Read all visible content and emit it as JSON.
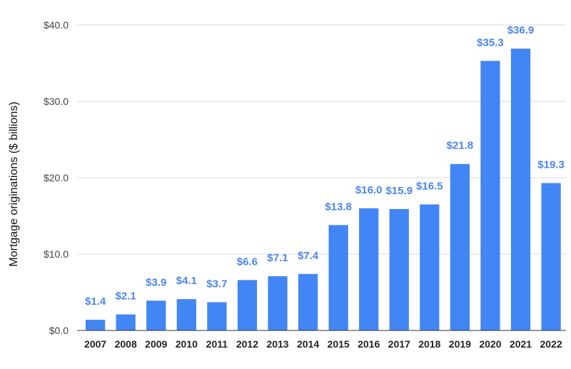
{
  "chart_data": {
    "type": "bar",
    "title": "",
    "xlabel": "",
    "ylabel": "Mortgage originations ($ billions)",
    "categories": [
      "2007",
      "2008",
      "2009",
      "2010",
      "2011",
      "2012",
      "2013",
      "2014",
      "2015",
      "2016",
      "2017",
      "2018",
      "2019",
      "2020",
      "2021",
      "2022"
    ],
    "values": [
      1.4,
      2.1,
      3.9,
      4.1,
      3.7,
      6.6,
      7.1,
      7.4,
      13.8,
      16.0,
      15.9,
      16.5,
      21.8,
      35.3,
      36.9,
      19.3
    ],
    "data_labels": [
      "$1.4",
      "$2.1",
      "$3.9",
      "$4.1",
      "$3.7",
      "$6.6",
      "$7.1",
      "$7.4",
      "$13.8",
      "$16.0",
      "$15.9",
      "$16.5",
      "$21.8",
      "$35.3",
      "$36.9",
      "$19.3"
    ],
    "ylim": [
      0,
      40
    ],
    "yticks": [
      0,
      10,
      20,
      30,
      40
    ],
    "ytick_labels": [
      "$0.0",
      "$10.0",
      "$20.0",
      "$30.0",
      "$40.0"
    ],
    "grid": true,
    "legend": "none",
    "colors": {
      "bar": "#4285f4",
      "data_label": "#4a86e8"
    }
  }
}
